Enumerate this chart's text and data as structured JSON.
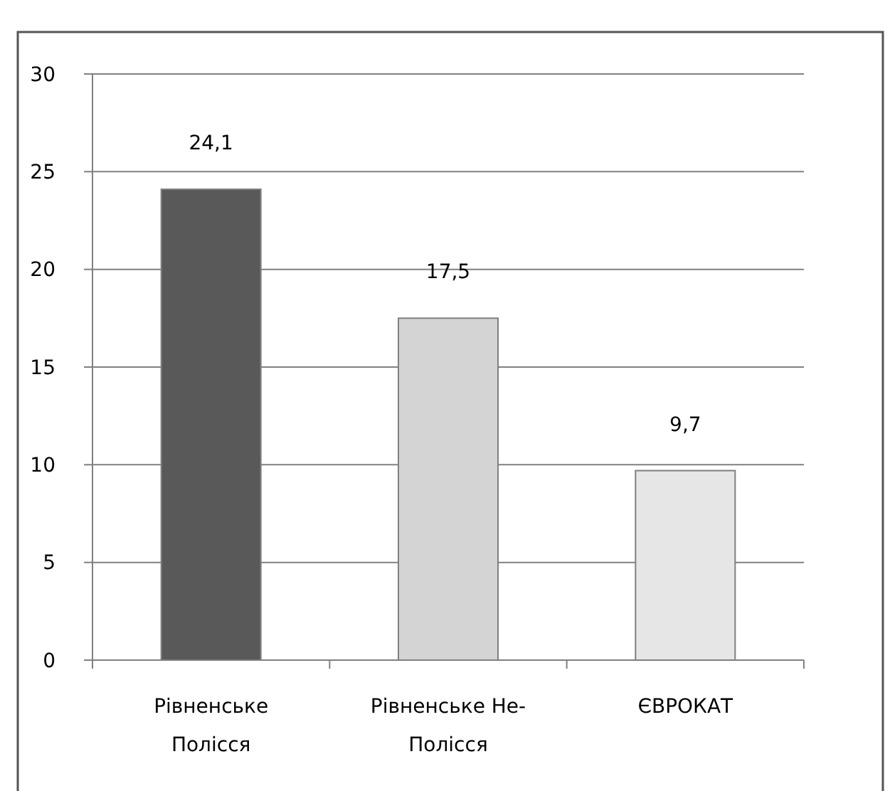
{
  "chart_data": {
    "type": "bar",
    "categories": [
      "Рівненське Полісся",
      "Рівненське Не-Полісся",
      "ЄВРОКАТ"
    ],
    "values": [
      24.1,
      17.5,
      9.7
    ],
    "colors": [
      "#595959",
      "#d4d4d4",
      "#e6e6e6"
    ],
    "value_labels": [
      "24,1",
      "17,5",
      "9,7"
    ],
    "ylim": [
      0,
      30
    ],
    "yticks": [
      0,
      5,
      10,
      15,
      20,
      25,
      30
    ],
    "grid": "y"
  }
}
